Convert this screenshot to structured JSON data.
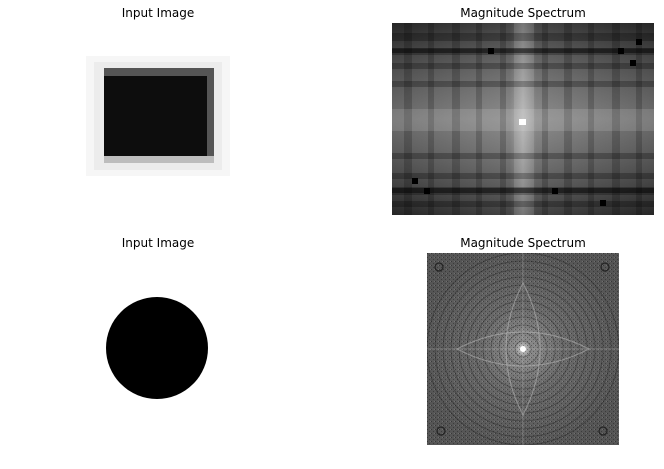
{
  "panels": [
    {
      "title": "Input Image"
    },
    {
      "title": "Magnitude Spectrum"
    },
    {
      "title": "Input Image"
    },
    {
      "title": "Magnitude Spectrum"
    }
  ]
}
